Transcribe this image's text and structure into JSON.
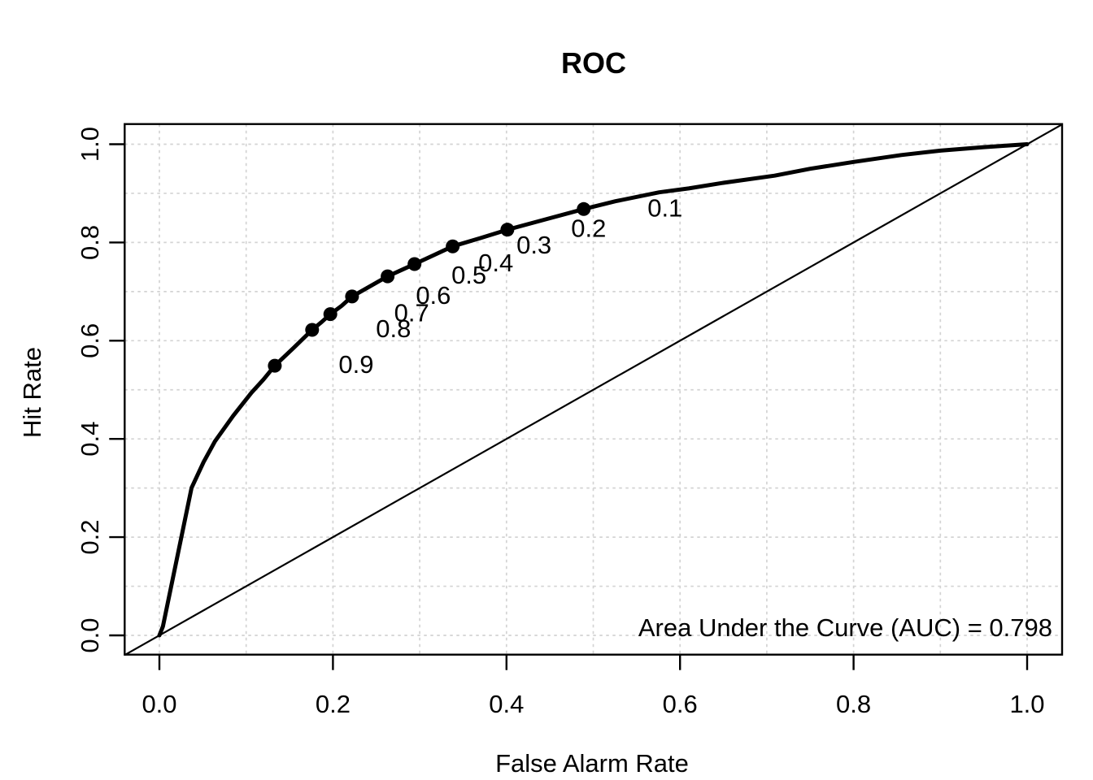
{
  "figure": {
    "background_color": "#ffffff",
    "foreground_color": "#000000"
  },
  "chart_data": {
    "type": "line",
    "title": "ROC",
    "xlabel": "False Alarm Rate",
    "ylabel": "Hit Rate",
    "xlim": [
      -0.04,
      1.04
    ],
    "ylim": [
      -0.04,
      1.04
    ],
    "x_axis": {
      "tick_values": [
        0.0,
        0.2,
        0.4,
        0.6,
        0.8,
        1.0
      ],
      "tick_labels": [
        "0.0",
        "0.2",
        "0.4",
        "0.6",
        "0.8",
        "1.0"
      ]
    },
    "y_axis": {
      "tick_values": [
        0.0,
        0.2,
        0.4,
        0.6,
        0.8,
        1.0
      ],
      "tick_labels": [
        "0.0",
        "0.2",
        "0.4",
        "0.6",
        "0.8",
        "1.0"
      ]
    },
    "grid": {
      "show": true,
      "step": 0.1,
      "positions": [
        0.0,
        0.1,
        0.2,
        0.3,
        0.4,
        0.5,
        0.6,
        0.7,
        0.8,
        0.9,
        1.0
      ],
      "color": "#d3d3d3",
      "style": "dashed"
    },
    "series": [
      {
        "name": "ROC curve",
        "color": "#000000",
        "linewidth": 5,
        "points": [
          [
            0.0,
            0.0
          ],
          [
            0.004,
            0.018
          ],
          [
            0.037,
            0.3
          ],
          [
            0.051,
            0.353
          ],
          [
            0.064,
            0.395
          ],
          [
            0.085,
            0.447
          ],
          [
            0.106,
            0.494
          ],
          [
            0.12,
            0.521
          ],
          [
            0.133,
            0.549
          ],
          [
            0.155,
            0.586
          ],
          [
            0.176,
            0.622
          ],
          [
            0.187,
            0.638
          ],
          [
            0.197,
            0.654
          ],
          [
            0.21,
            0.671
          ],
          [
            0.222,
            0.69
          ],
          [
            0.243,
            0.711
          ],
          [
            0.263,
            0.731
          ],
          [
            0.279,
            0.744
          ],
          [
            0.294,
            0.756
          ],
          [
            0.316,
            0.774
          ],
          [
            0.338,
            0.792
          ],
          [
            0.37,
            0.809
          ],
          [
            0.401,
            0.826
          ],
          [
            0.445,
            0.847
          ],
          [
            0.489,
            0.868
          ],
          [
            0.526,
            0.884
          ],
          [
            0.576,
            0.902
          ],
          [
            0.61,
            0.91
          ],
          [
            0.648,
            0.921
          ],
          [
            0.709,
            0.936
          ],
          [
            0.75,
            0.95
          ],
          [
            0.8,
            0.964
          ],
          [
            0.855,
            0.978
          ],
          [
            0.9,
            0.987
          ],
          [
            0.95,
            0.994
          ],
          [
            1.0,
            1.0
          ]
        ]
      },
      {
        "name": "chance diagonal",
        "color": "#000000",
        "linewidth": 2.2,
        "points": [
          [
            -0.04,
            -0.04
          ],
          [
            1.04,
            1.04
          ]
        ]
      }
    ],
    "cutoff_points": {
      "marker": "filled-circle",
      "color": "#000000",
      "radius_px": 8.5,
      "items": [
        {
          "label": "0.9",
          "x": 0.133,
          "y": 0.549
        },
        {
          "label": "0.8",
          "x": 0.176,
          "y": 0.622
        },
        {
          "label": "0.7",
          "x": 0.197,
          "y": 0.654
        },
        {
          "label": "0.6",
          "x": 0.222,
          "y": 0.69
        },
        {
          "label": "0.5",
          "x": 0.263,
          "y": 0.731
        },
        {
          "label": "0.4",
          "x": 0.294,
          "y": 0.756
        },
        {
          "label": "0.3",
          "x": 0.338,
          "y": 0.792
        },
        {
          "label": "0.2",
          "x": 0.401,
          "y": 0.826
        },
        {
          "label": "0.1",
          "x": 0.489,
          "y": 0.868
        }
      ]
    },
    "annotations": [
      {
        "text": "Area Under the Curve (AUC) = 0.798",
        "x": 1.0,
        "y": 0.02,
        "align": "right"
      }
    ],
    "auc_value": 0.798,
    "legend": null
  }
}
